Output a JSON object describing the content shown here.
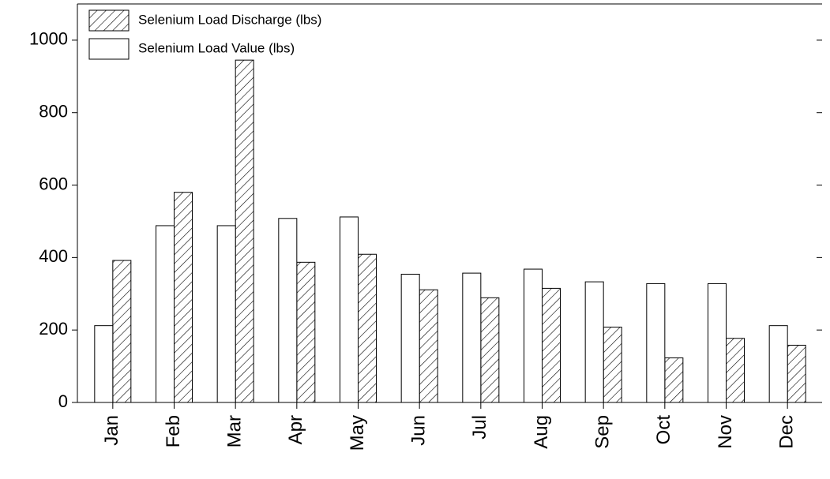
{
  "chart_data": {
    "type": "bar",
    "categories": [
      "Jan",
      "Feb",
      "Mar",
      "Apr",
      "May",
      "Jun",
      "Jul",
      "Aug",
      "Sep",
      "Oct",
      "Nov",
      "Dec"
    ],
    "series": [
      {
        "name": "Selenium Load Discharge (lbs)",
        "color": "#000000",
        "hatch": true,
        "values": [
          392,
          580,
          945,
          387,
          409,
          311,
          289,
          315,
          208,
          123,
          177,
          158
        ]
      },
      {
        "name": "Selenium Load Value (lbs)",
        "color": "#ffffff",
        "hatch": false,
        "values": [
          212,
          488,
          488,
          508,
          512,
          354,
          357,
          368,
          333,
          328,
          328,
          212
        ]
      }
    ],
    "ylim": [
      0,
      1100
    ],
    "yticks": [
      0,
      200,
      400,
      600,
      800,
      1000
    ],
    "legend": "upper left",
    "grid": false
  }
}
